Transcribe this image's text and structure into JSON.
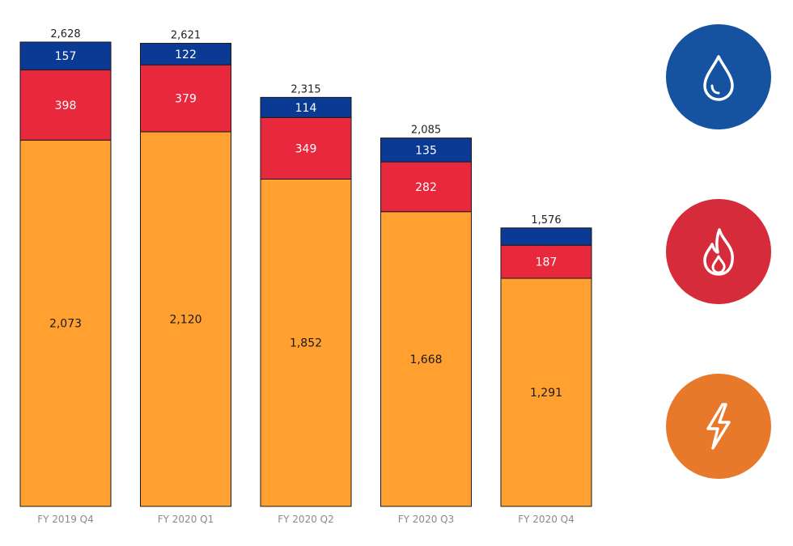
{
  "chart_data": {
    "type": "bar",
    "stacked": true,
    "categories": [
      "FY 2019 Q4",
      "FY 2020 Q1",
      "FY 2020 Q2",
      "FY 2020 Q3",
      "FY 2020 Q4"
    ],
    "totals": [
      "2,628",
      "2,621",
      "2,315",
      "2,085",
      "1,576"
    ],
    "series": [
      {
        "color": "#FFA030",
        "text_color": "#1a1a1a",
        "values": [
          2073,
          2120,
          1852,
          1668,
          1291
        ],
        "labels": [
          "2,073",
          "2,120",
          "1,852",
          "1,668",
          "1,291"
        ]
      },
      {
        "color": "#E8283C",
        "text_color": "#ffffff",
        "values": [
          398,
          379,
          349,
          282,
          187
        ],
        "labels": [
          "398",
          "379",
          "349",
          "282",
          "187"
        ]
      },
      {
        "color": "#0A3A94",
        "text_color": "#ffffff",
        "values": [
          157,
          122,
          114,
          135,
          98
        ],
        "labels": [
          "157",
          "122",
          "114",
          "135",
          ""
        ]
      }
    ],
    "ylim": [
      0,
      2628
    ],
    "grid": false,
    "legend": "right"
  },
  "legend_icons": [
    {
      "icon": "water-drop-icon",
      "color": "#1553A0"
    },
    {
      "icon": "flame-icon",
      "color": "#D62B3A"
    },
    {
      "icon": "lightning-bolt-icon",
      "color": "#E8782A"
    }
  ]
}
